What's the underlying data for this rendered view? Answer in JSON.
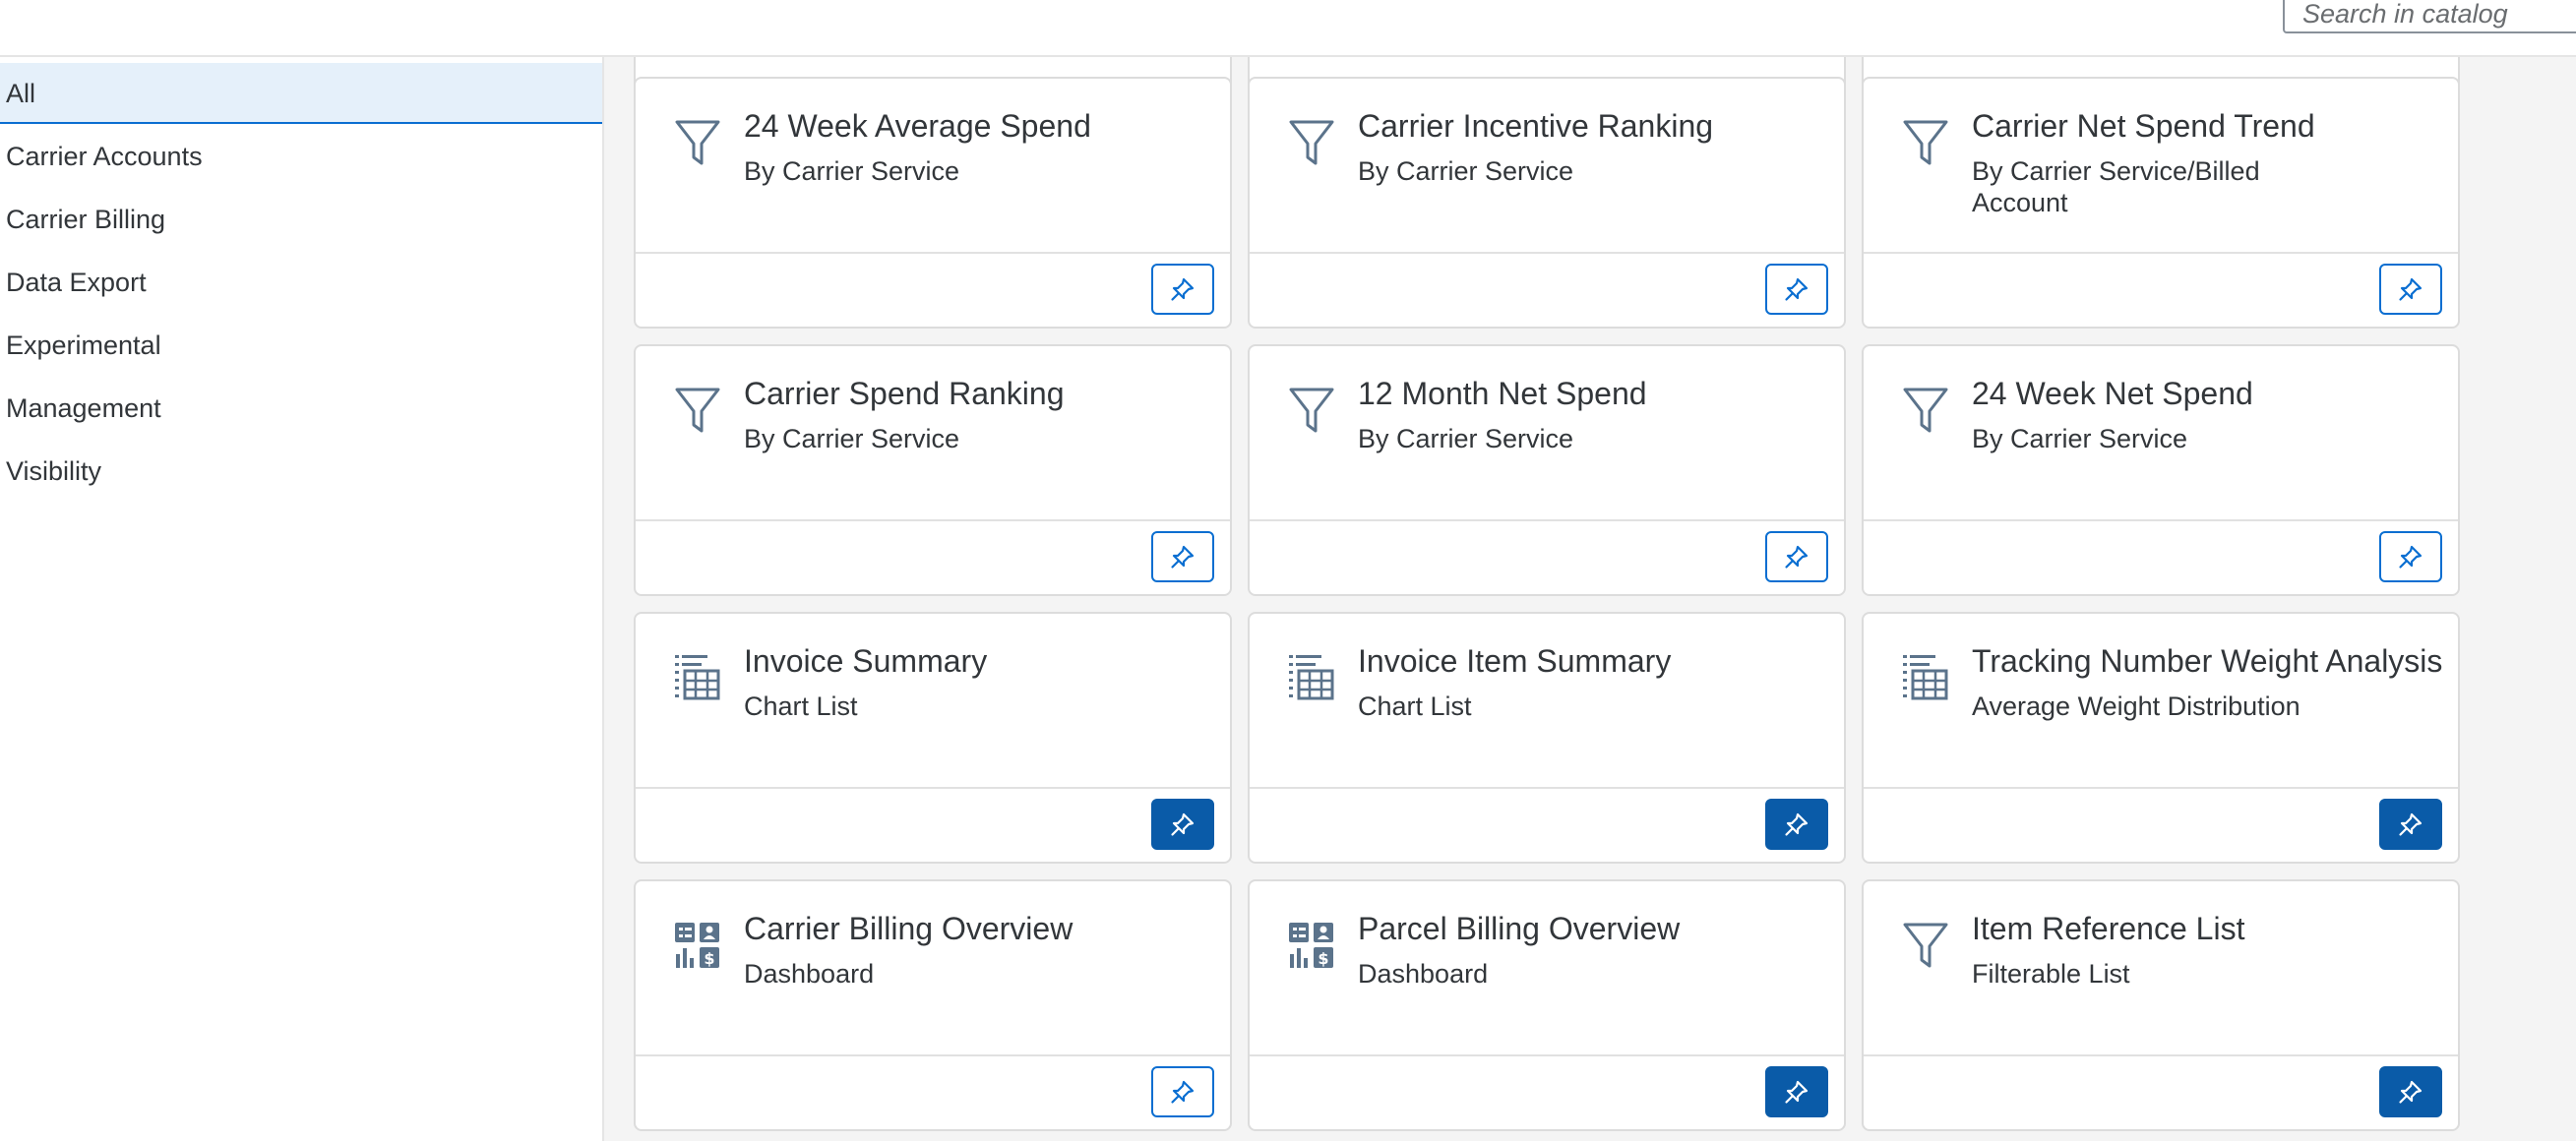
{
  "search": {
    "placeholder": "Search in catalog",
    "value": ""
  },
  "sidebar": {
    "items": [
      {
        "label": "All",
        "selected": true
      },
      {
        "label": "Carrier Accounts",
        "selected": false
      },
      {
        "label": "Carrier Billing",
        "selected": false
      },
      {
        "label": "Data Export",
        "selected": false
      },
      {
        "label": "Experimental",
        "selected": false
      },
      {
        "label": "Management",
        "selected": false
      },
      {
        "label": "Visibility",
        "selected": false
      }
    ]
  },
  "tiles": [
    {
      "title": "24 Week Average Spend",
      "subtitle": "By Carrier Service",
      "icon": "filter-icon",
      "pinned": false
    },
    {
      "title": "Carrier Incentive Ranking",
      "subtitle": "By Carrier Service",
      "icon": "filter-icon",
      "pinned": false
    },
    {
      "title": "Carrier Net Spend Trend",
      "subtitle": "By Carrier Service/Billed Account",
      "icon": "filter-icon",
      "pinned": false
    },
    {
      "title": "Carrier Spend Ranking",
      "subtitle": "By Carrier Service",
      "icon": "filter-icon",
      "pinned": false
    },
    {
      "title": "12 Month Net Spend",
      "subtitle": "By Carrier Service",
      "icon": "filter-icon",
      "pinned": false
    },
    {
      "title": "24 Week Net Spend",
      "subtitle": "By Carrier Service",
      "icon": "filter-icon",
      "pinned": false
    },
    {
      "title": "Invoice Summary",
      "subtitle": "Chart List",
      "icon": "table-list-icon",
      "pinned": true
    },
    {
      "title": "Invoice Item Summary",
      "subtitle": "Chart List",
      "icon": "table-list-icon",
      "pinned": true
    },
    {
      "title": "Tracking Number Weight Analysis",
      "subtitle": "Average Weight Distribution",
      "icon": "table-list-icon",
      "pinned": true
    },
    {
      "title": "Carrier Billing Overview",
      "subtitle": "Dashboard",
      "icon": "dashboard-icon",
      "pinned": false
    },
    {
      "title": "Parcel Billing Overview",
      "subtitle": "Dashboard",
      "icon": "dashboard-icon",
      "pinned": true
    },
    {
      "title": "Item Reference List",
      "subtitle": "Filterable List",
      "icon": "filter-icon",
      "pinned": true
    }
  ],
  "colors": {
    "accent": "#0a6ed1",
    "pin_active": "#0a5ba8",
    "icon": "#5b738b",
    "selected_bg": "#e5f0fa"
  }
}
